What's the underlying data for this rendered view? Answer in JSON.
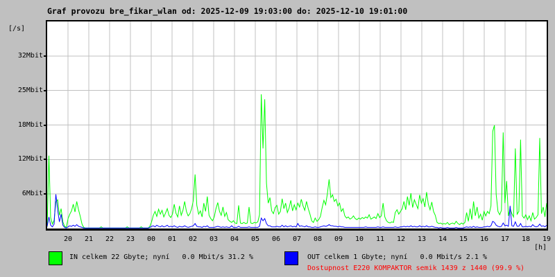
{
  "title": "Graf provozu bre_fikar_wlan od: 2025-12-09 19:03:00 do: 2025-12-10 19:01:00",
  "y_unit_label": "[/s]",
  "x_unit_label": "[h]",
  "colors": {
    "in_line": "#00ff00",
    "out_line": "#0000ff",
    "background": "#c0c0c0",
    "plot_background": "#ffffff",
    "grid": "#c0c0c0",
    "axis": "#000000",
    "availability_text": "#ff0000"
  },
  "legend": {
    "in_label": "IN celkem 22 Gbyte; nyní   0.0 Mbit/s 31.2 %",
    "out_label": "OUT celkem 1 Gbyte; nyní   0.0 Mbit/s 2.1 %"
  },
  "availability_text": "Dostupnost E220 KOMPAKTOR semik 1439 z 1440 (99.9 %)",
  "chart_data": {
    "type": "line",
    "title": "Graf provozu bre_fikar_wlan",
    "time_from": "2025-12-09 19:03:00",
    "time_to": "2025-12-10 19:01:00",
    "x_hours": [
      "20",
      "21",
      "22",
      "23",
      "00",
      "01",
      "02",
      "03",
      "04",
      "05",
      "06",
      "07",
      "08",
      "09",
      "10",
      "11",
      "12",
      "13",
      "14",
      "15",
      "16",
      "17",
      "18",
      "19"
    ],
    "y_tick_labels": [
      "32Mbit",
      "25Mbit",
      "18Mbit",
      "12Mbit",
      "6Mbit"
    ],
    "y_tick_values": [
      31.25,
      25,
      18.75,
      12.5,
      6.25
    ],
    "ylim": [
      0,
      37.5
    ],
    "ylabel_unit": "Mbit/s",
    "x_range_hours": 24,
    "interval_minutes": 5,
    "grid": true,
    "legend_position": "bottom",
    "series": [
      {
        "name": "IN",
        "unit": "Mbit/s",
        "color": "#00ff00",
        "values": [
          0.3,
          13.2,
          2.0,
          0.8,
          1.5,
          4.8,
          5.2,
          2.4,
          3.6,
          1.2,
          0.4,
          0.2,
          1.8,
          2.6,
          3.2,
          4.4,
          3.0,
          4.9,
          3.4,
          2.2,
          0.8,
          0.2,
          0.1,
          0.1,
          0.1,
          0.1,
          0.1,
          0.1,
          0.1,
          0.1,
          0.1,
          0.3,
          0.1,
          0.1,
          0.1,
          0.1,
          0.1,
          0.1,
          0.1,
          0.1,
          0.1,
          0.1,
          0.1,
          0.1,
          0.1,
          0.1,
          0.3,
          0.1,
          0.1,
          0.1,
          0.1,
          0.1,
          0.1,
          0.1,
          0.3,
          0.1,
          0.1,
          0.1,
          0.1,
          0.4,
          1.2,
          2.4,
          3.1,
          2.2,
          3.5,
          2.6,
          3.3,
          2.1,
          2.8,
          3.6,
          2.4,
          2.0,
          2.6,
          4.4,
          2.8,
          2.1,
          4.1,
          2.4,
          3.3,
          4.9,
          3.1,
          2.3,
          2.7,
          3.6,
          5.1,
          9.8,
          4.2,
          2.6,
          3.2,
          2.1,
          4.6,
          3.1,
          5.8,
          2.4,
          1.8,
          1.4,
          2.1,
          3.6,
          4.7,
          3.1,
          2.4,
          3.9,
          2.2,
          2.9,
          1.6,
          1.3,
          1.1,
          1.4,
          1.0,
          0.9,
          4.2,
          1.0,
          0.9,
          1.1,
          0.9,
          1.0,
          3.9,
          1.0,
          0.9,
          1.1,
          1.0,
          1.2,
          2.5,
          24.3,
          14.5,
          23.4,
          8.2,
          4.6,
          5.6,
          3.2,
          2.7,
          3.8,
          4.2,
          2.6,
          3.1,
          5.4,
          3.6,
          4.6,
          2.9,
          3.7,
          5.1,
          3.2,
          4.3,
          3.4,
          4.6,
          3.9,
          5.3,
          4.1,
          3.3,
          4.9,
          3.6,
          2.6,
          1.4,
          1.1,
          1.9,
          1.3,
          1.6,
          2.2,
          3.8,
          5.1,
          4.3,
          6.3,
          8.9,
          5.6,
          6.1,
          4.9,
          5.3,
          4.1,
          4.6,
          3.1,
          3.6,
          2.3,
          1.9,
          2.1,
          1.7,
          1.9,
          2.3,
          1.8,
          1.6,
          1.9,
          1.7,
          2.0,
          1.8,
          2.1,
          1.9,
          2.5,
          1.7,
          1.9,
          2.1,
          1.8,
          2.7,
          2.0,
          2.3,
          4.6,
          2.1,
          1.4,
          1.1,
          1.0,
          1.2,
          1.1,
          2.9,
          3.4,
          2.6,
          3.1,
          3.6,
          4.9,
          3.4,
          5.8,
          4.2,
          6.4,
          3.8,
          5.2,
          4.4,
          3.6,
          6.1,
          4.6,
          5.4,
          3.9,
          6.6,
          4.4,
          3.4,
          4.8,
          3.1,
          2.4,
          1.1,
          0.9,
          1.0,
          0.8,
          0.9,
          0.8,
          1.1,
          0.7,
          0.9,
          1.0,
          0.8,
          1.3,
          0.9,
          0.7,
          1.0,
          0.8,
          1.1,
          2.9,
          1.3,
          3.6,
          1.6,
          4.9,
          2.3,
          3.9,
          1.9,
          2.6,
          1.5,
          3.1,
          2.3,
          3.1,
          2.7,
          4.1,
          17.6,
          18.7,
          6.2,
          3.1,
          2.5,
          3.3,
          17.4,
          4.6,
          8.6,
          2.3,
          3.6,
          2.7,
          2.1,
          14.5,
          2.6,
          3.1,
          16.1,
          2.3,
          1.9,
          2.5,
          1.6,
          2.3,
          1.4,
          2.9,
          1.7,
          2.0,
          2.5,
          16.4,
          2.7,
          3.9,
          2.1,
          4.6
        ]
      },
      {
        "name": "OUT",
        "unit": "Mbit/s",
        "color": "#0000ff",
        "values": [
          0.4,
          2.1,
          0.6,
          0.3,
          0.8,
          6.2,
          3.4,
          1.2,
          2.6,
          0.6,
          0.2,
          0.1,
          0.3,
          0.5,
          0.4,
          0.6,
          0.4,
          0.7,
          0.4,
          0.3,
          0.2,
          0.1,
          0.1,
          0.1,
          0.1,
          0.1,
          0.1,
          0.1,
          0.1,
          0.1,
          0.1,
          0.1,
          0.1,
          0.1,
          0.1,
          0.1,
          0.1,
          0.1,
          0.1,
          0.1,
          0.1,
          0.1,
          0.1,
          0.1,
          0.1,
          0.1,
          0.1,
          0.1,
          0.1,
          0.1,
          0.1,
          0.1,
          0.1,
          0.1,
          0.1,
          0.1,
          0.1,
          0.1,
          0.1,
          0.2,
          0.4,
          0.5,
          0.3,
          0.6,
          0.4,
          0.3,
          0.5,
          0.3,
          0.4,
          0.6,
          0.3,
          0.4,
          0.3,
          0.5,
          0.3,
          0.2,
          0.4,
          0.3,
          0.3,
          0.5,
          0.3,
          0.2,
          0.3,
          0.4,
          0.5,
          0.9,
          0.4,
          0.3,
          0.3,
          0.2,
          0.4,
          0.3,
          0.5,
          0.2,
          0.2,
          0.2,
          0.2,
          0.3,
          0.4,
          0.3,
          0.2,
          0.3,
          0.2,
          0.3,
          0.2,
          0.2,
          0.5,
          0.2,
          0.2,
          0.2,
          0.4,
          0.2,
          0.2,
          0.2,
          0.2,
          0.2,
          0.3,
          0.2,
          0.2,
          0.2,
          0.2,
          0.2,
          0.4,
          1.9,
          1.4,
          1.8,
          0.9,
          0.5,
          0.5,
          0.3,
          0.3,
          0.3,
          0.4,
          0.3,
          0.3,
          0.6,
          0.3,
          0.5,
          0.3,
          0.4,
          0.5,
          0.3,
          0.4,
          0.3,
          0.9,
          0.4,
          0.5,
          0.4,
          0.3,
          0.5,
          0.3,
          0.3,
          0.2,
          0.2,
          0.3,
          0.2,
          0.2,
          0.3,
          0.4,
          0.5,
          0.4,
          0.5,
          0.7,
          0.5,
          0.5,
          0.4,
          0.4,
          0.3,
          0.4,
          0.3,
          0.3,
          0.2,
          0.2,
          0.2,
          0.2,
          0.2,
          0.2,
          0.2,
          0.2,
          0.2,
          0.2,
          0.2,
          0.2,
          0.3,
          0.2,
          0.2,
          0.2,
          0.2,
          0.2,
          0.2,
          0.3,
          0.2,
          0.2,
          0.3,
          0.2,
          0.2,
          0.2,
          0.2,
          0.2,
          0.2,
          0.3,
          0.2,
          0.2,
          0.3,
          0.3,
          0.4,
          0.3,
          0.4,
          0.3,
          0.5,
          0.3,
          0.4,
          0.3,
          0.3,
          0.5,
          0.3,
          0.4,
          0.3,
          0.5,
          0.3,
          0.3,
          0.4,
          0.3,
          0.2,
          0.2,
          0.1,
          0.2,
          0.1,
          0.1,
          0.1,
          0.2,
          0.1,
          0.1,
          0.1,
          0.1,
          0.2,
          0.1,
          0.1,
          0.1,
          0.1,
          0.2,
          0.3,
          0.2,
          0.3,
          0.2,
          0.4,
          0.2,
          0.3,
          0.2,
          0.2,
          0.2,
          0.3,
          0.3,
          0.4,
          0.3,
          0.5,
          1.3,
          1.1,
          0.6,
          0.4,
          0.3,
          0.4,
          1.0,
          0.5,
          0.6,
          0.4,
          4.1,
          0.5,
          0.4,
          1.2,
          0.4,
          0.4,
          0.9,
          0.3,
          0.3,
          0.4,
          0.3,
          0.4,
          0.3,
          0.7,
          0.4,
          0.3,
          0.4,
          0.8,
          0.4,
          0.5,
          0.3,
          0.6
        ]
      }
    ]
  }
}
